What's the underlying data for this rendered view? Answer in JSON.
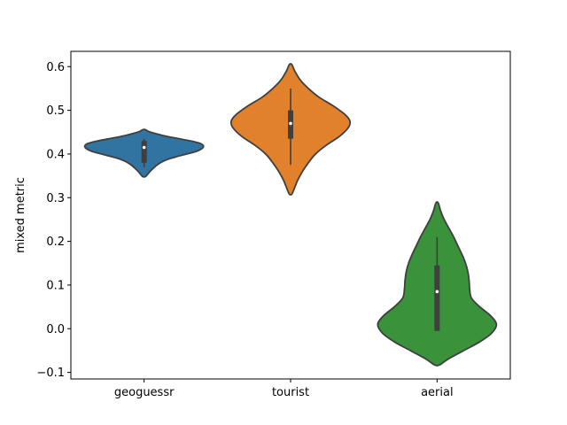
{
  "chart_data": {
    "type": "violin",
    "categories": [
      "geoguessr",
      "tourist",
      "aerial"
    ],
    "xlabel": "",
    "ylabel": "mixed metric",
    "ylim": [
      -0.115,
      0.635
    ],
    "yticks": [
      -0.1,
      0.0,
      0.1,
      0.2,
      0.3,
      0.4,
      0.5,
      0.6
    ],
    "ytick_labels": [
      "−0.1",
      "0.0",
      "0.1",
      "0.2",
      "0.3",
      "0.4",
      "0.5",
      "0.6"
    ],
    "grid": false,
    "series": [
      {
        "category": "geoguessr",
        "color": "#3274a1",
        "min": 0.37,
        "q1": 0.38,
        "median": 0.415,
        "q3": 0.43,
        "max": 0.435,
        "density": [
          [
            0.348,
            0.02
          ],
          [
            0.352,
            0.05
          ],
          [
            0.36,
            0.1
          ],
          [
            0.368,
            0.16
          ],
          [
            0.375,
            0.22
          ],
          [
            0.382,
            0.3
          ],
          [
            0.388,
            0.4
          ],
          [
            0.394,
            0.55
          ],
          [
            0.4,
            0.72
          ],
          [
            0.406,
            0.88
          ],
          [
            0.412,
            0.97
          ],
          [
            0.418,
            1.0
          ],
          [
            0.424,
            0.95
          ],
          [
            0.43,
            0.78
          ],
          [
            0.436,
            0.55
          ],
          [
            0.442,
            0.33
          ],
          [
            0.448,
            0.16
          ],
          [
            0.452,
            0.07
          ],
          [
            0.456,
            0.02
          ]
        ]
      },
      {
        "category": "tourist",
        "color": "#e1812c",
        "min": 0.375,
        "q1": 0.435,
        "median": 0.47,
        "q3": 0.5,
        "max": 0.55,
        "density": [
          [
            0.308,
            0.02
          ],
          [
            0.32,
            0.06
          ],
          [
            0.34,
            0.12
          ],
          [
            0.36,
            0.2
          ],
          [
            0.38,
            0.3
          ],
          [
            0.4,
            0.42
          ],
          [
            0.42,
            0.6
          ],
          [
            0.44,
            0.82
          ],
          [
            0.46,
            0.97
          ],
          [
            0.475,
            1.0
          ],
          [
            0.49,
            0.92
          ],
          [
            0.51,
            0.72
          ],
          [
            0.53,
            0.48
          ],
          [
            0.55,
            0.3
          ],
          [
            0.57,
            0.16
          ],
          [
            0.59,
            0.07
          ],
          [
            0.605,
            0.02
          ]
        ]
      },
      {
        "category": "aerial",
        "color": "#3a923a",
        "min": -0.005,
        "q1": -0.005,
        "median": 0.085,
        "q3": 0.145,
        "max": 0.21,
        "density": [
          [
            -0.083,
            0.04
          ],
          [
            -0.07,
            0.18
          ],
          [
            -0.05,
            0.45
          ],
          [
            -0.03,
            0.72
          ],
          [
            -0.01,
            0.92
          ],
          [
            0.01,
            1.0
          ],
          [
            0.03,
            0.9
          ],
          [
            0.05,
            0.72
          ],
          [
            0.07,
            0.58
          ],
          [
            0.09,
            0.55
          ],
          [
            0.11,
            0.54
          ],
          [
            0.13,
            0.52
          ],
          [
            0.15,
            0.48
          ],
          [
            0.17,
            0.42
          ],
          [
            0.19,
            0.35
          ],
          [
            0.21,
            0.28
          ],
          [
            0.23,
            0.2
          ],
          [
            0.25,
            0.12
          ],
          [
            0.27,
            0.06
          ],
          [
            0.288,
            0.02
          ]
        ]
      }
    ]
  }
}
